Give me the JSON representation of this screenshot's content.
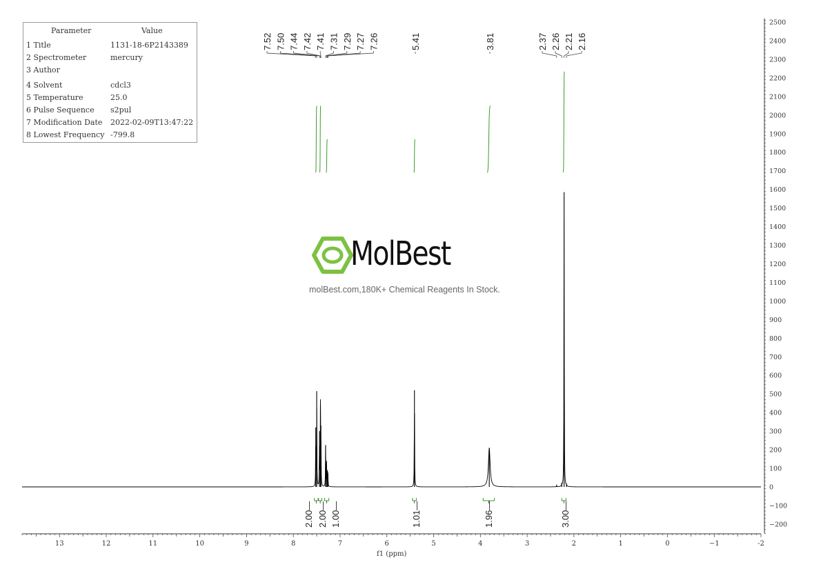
{
  "parameter_table": {
    "header_param": "Parameter",
    "header_value": "Value",
    "rows": [
      {
        "key": "1 Title",
        "value": "1131-18-6P2143389"
      },
      {
        "key": "2 Spectrometer",
        "value": "mercury"
      },
      {
        "key": "3 Author",
        "value": ""
      },
      {
        "key": "4 Solvent",
        "value": "cdcl3"
      },
      {
        "key": "5 Temperature",
        "value": "25.0"
      },
      {
        "key": "6 Pulse Sequence",
        "value": "s2pul"
      },
      {
        "key": "7 Modification Date",
        "value": "2022-02-09T13:47:22"
      },
      {
        "key": "8 Lowest Frequency",
        "value": "-799.8"
      }
    ]
  },
  "watermark": {
    "brand": "MolBest",
    "tagline": "molBest.com,180K+ Chemical Reagents In Stock.",
    "brand_color": "#7dc142"
  },
  "chart_data": {
    "type": "line",
    "title": "",
    "xlabel": "f1 (ppm)",
    "ylabel": "",
    "xlim": [
      13.8,
      -2
    ],
    "ylim": [
      -250,
      2520
    ],
    "x_reversed": true,
    "x_ticks": [
      13,
      12,
      11,
      10,
      9,
      8,
      7,
      6,
      5,
      4,
      3,
      2,
      1,
      0,
      -1,
      -2
    ],
    "x_tick_labels": [
      "13",
      "12",
      "11",
      "10",
      "9",
      "8",
      "7",
      "6",
      "5",
      "4",
      "3",
      "2",
      "1",
      "0",
      "−1",
      "-2"
    ],
    "y_ticks": [
      -200,
      -100,
      0,
      100,
      200,
      300,
      400,
      500,
      600,
      700,
      800,
      900,
      1000,
      1100,
      1200,
      1300,
      1400,
      1500,
      1600,
      1700,
      1800,
      1900,
      2000,
      2100,
      2200,
      2300,
      2400,
      2500
    ],
    "y_tick_labels": [
      "−200",
      "−100",
      "0",
      "100",
      "200",
      "300",
      "400",
      "500",
      "600",
      "700",
      "800",
      "900",
      "1000",
      "1100",
      "1200",
      "1300",
      "1400",
      "1500",
      "1600",
      "1700",
      "1800",
      "1900",
      "2000",
      "2100",
      "2200",
      "2300",
      "2400",
      "2500"
    ],
    "spectrum_color": "#000000",
    "integral_color": "#3a9a2a",
    "peaks": [
      {
        "ppm": 7.52,
        "height": 320
      },
      {
        "ppm": 7.5,
        "height": 515
      },
      {
        "ppm": 7.44,
        "height": 300
      },
      {
        "ppm": 7.42,
        "height": 440
      },
      {
        "ppm": 7.41,
        "height": 330
      },
      {
        "ppm": 7.31,
        "height": 220
      },
      {
        "ppm": 7.29,
        "height": 140
      },
      {
        "ppm": 7.27,
        "height": 90
      },
      {
        "ppm": 7.26,
        "height": 70
      },
      {
        "ppm": 5.41,
        "height": 520
      },
      {
        "ppm": 3.81,
        "height": 210
      },
      {
        "ppm": 2.37,
        "height": 8
      },
      {
        "ppm": 2.26,
        "height": 12
      },
      {
        "ppm": 2.21,
        "height": 1585
      },
      {
        "ppm": 2.16,
        "height": 10
      }
    ],
    "peak_labels": [
      {
        "group": [
          "7.52",
          "7.50",
          "7.44",
          "7.42",
          "7.41",
          "7.31",
          "7.29",
          "7.27",
          "7.26"
        ],
        "ppms": [
          7.52,
          7.5,
          7.44,
          7.42,
          7.41,
          7.31,
          7.29,
          7.27,
          7.26
        ]
      },
      {
        "group": [
          "5.41"
        ],
        "ppms": [
          5.41
        ]
      },
      {
        "group": [
          "3.81"
        ],
        "ppms": [
          3.81
        ]
      },
      {
        "group": [
          "2.37",
          "2.26",
          "2.21",
          "2.16"
        ],
        "ppms": [
          2.37,
          2.26,
          2.21,
          2.16
        ]
      }
    ],
    "integrals": [
      {
        "from": 7.55,
        "to": 7.47,
        "value": "2.00",
        "curve": [
          1690,
          2050
        ]
      },
      {
        "from": 7.46,
        "to": 7.39,
        "value": "2.00",
        "curve": [
          1690,
          2050
        ]
      },
      {
        "from": 7.33,
        "to": 7.24,
        "value": "1.00",
        "curve": [
          1690,
          1870
        ]
      },
      {
        "from": 5.45,
        "to": 5.37,
        "value": "1.01",
        "curve": [
          1690,
          1870
        ]
      },
      {
        "from": 3.94,
        "to": 3.7,
        "value": "1.96",
        "curve": [
          1690,
          2050
        ]
      },
      {
        "from": 2.26,
        "to": 2.17,
        "value": "3.00",
        "curve": [
          1690,
          2235
        ]
      }
    ]
  }
}
